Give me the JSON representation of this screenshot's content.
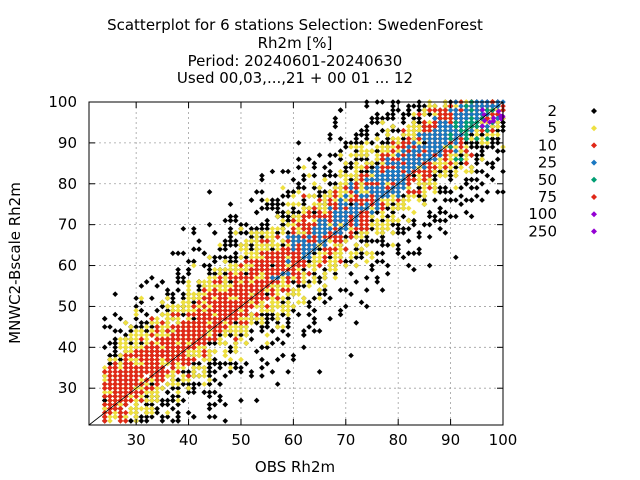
{
  "chart_data": {
    "type": "scatter",
    "title_lines": [
      "Scatterplot for    6 stations Selection: SwedenForest",
      "Rh2m [%]",
      "Period: 20240601-20240630",
      "Used 00,03,...,21 + 00 01 ... 12"
    ],
    "xlabel": "OBS Rh2m",
    "ylabel": "MNWC2-Bscale Rh2m",
    "xlim": [
      21,
      100
    ],
    "ylim": [
      21,
      100
    ],
    "xticks": [
      30,
      40,
      50,
      60,
      70,
      80,
      90,
      100
    ],
    "yticks": [
      30,
      40,
      50,
      60,
      70,
      80,
      90,
      100
    ],
    "grid": true,
    "legend_position": "right",
    "reference_line": "y = x",
    "density_classes": [
      {
        "label": "2",
        "color": "#000000"
      },
      {
        "label": "5",
        "color": "#eee040"
      },
      {
        "label": "10",
        "color": "#e02818"
      },
      {
        "label": "25",
        "color": "#1a78c2"
      },
      {
        "label": "50",
        "color": "#009e73"
      },
      {
        "label": "75",
        "color": "#e02818"
      },
      {
        "label": "100",
        "color": "#9400d3"
      },
      {
        "label": "250",
        "color": "#9400d3"
      }
    ],
    "description": "Density-coloured scatter of modelled vs observed 2 m relative humidity; point colour gives number of cases per bin"
  }
}
